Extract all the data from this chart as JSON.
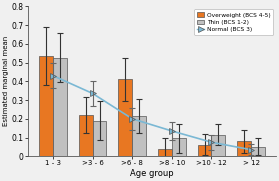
{
  "categories": [
    "1 - 3",
    ">3 - 6",
    ">6 - 8",
    ">8 - 10",
    ">10 - 12",
    "> 12"
  ],
  "overweight": [
    0.535,
    0.22,
    0.41,
    0.04,
    0.062,
    0.08
  ],
  "thin": [
    0.525,
    0.19,
    0.215,
    0.095,
    0.115,
    0.05
  ],
  "normal": [
    0.43,
    0.335,
    0.2,
    0.135,
    0.075,
    0.035
  ],
  "overweight_err": [
    0.155,
    0.095,
    0.115,
    0.06,
    0.055,
    0.06
  ],
  "thin_err": [
    0.13,
    0.105,
    0.09,
    0.075,
    0.055,
    0.045
  ],
  "normal_err": [
    0.065,
    0.065,
    0.06,
    0.05,
    0.04,
    0.03
  ],
  "overweight_color": "#E87722",
  "thin_color": "#C0C0C0",
  "normal_color": "#7AB8D4",
  "xlabel": "Age group",
  "ylabel": "Estimated marginal mean",
  "ylim": [
    0.0,
    0.8
  ],
  "yticks": [
    0.0,
    0.1,
    0.2,
    0.3,
    0.4,
    0.5,
    0.6,
    0.7,
    0.8
  ],
  "legend_labels": [
    "Overweight (BCS 4-5)",
    "Thin (BCS 1-2)",
    "Normal (BCS 3)"
  ],
  "bar_width": 0.35,
  "figsize": [
    2.79,
    1.81
  ],
  "dpi": 100
}
